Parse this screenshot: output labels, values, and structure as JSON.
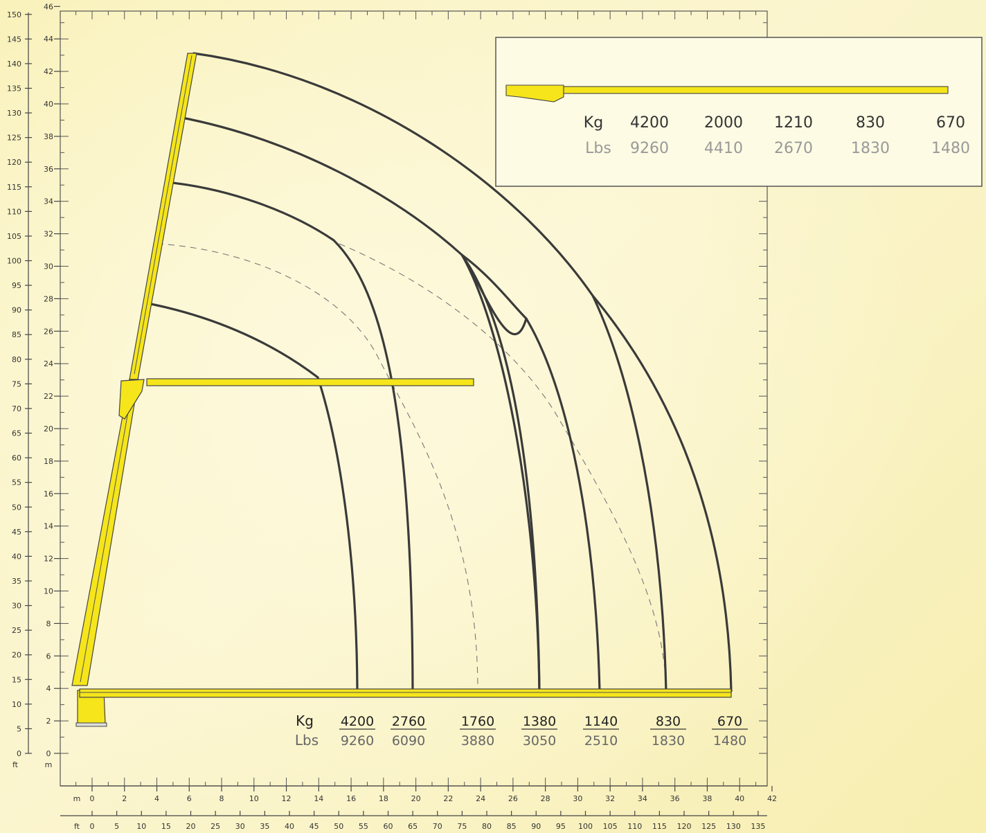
{
  "chart_data": {
    "type": "load-chart",
    "axes": {
      "left_ft": {
        "unit_label": "ft",
        "ticks": [
          0,
          5,
          10,
          15,
          20,
          25,
          30,
          35,
          40,
          45,
          50,
          55,
          60,
          65,
          70,
          75,
          80,
          85,
          90,
          95,
          100,
          105,
          110,
          115,
          120,
          125,
          130,
          135,
          140,
          145,
          150
        ]
      },
      "left_m": {
        "unit_label": "m",
        "ticks": [
          0,
          2,
          4,
          6,
          8,
          10,
          12,
          14,
          16,
          18,
          20,
          22,
          24,
          26,
          28,
          30,
          32,
          34,
          36,
          38,
          40,
          42,
          44,
          46
        ]
      },
      "bottom_m": {
        "unit_label": "m",
        "ticks": [
          0,
          2,
          4,
          6,
          8,
          10,
          12,
          14,
          16,
          18,
          20,
          22,
          24,
          26,
          28,
          30,
          32,
          34,
          36,
          38,
          40,
          42
        ]
      },
      "bottom_ft": {
        "unit_label": "ft",
        "ticks": [
          0,
          5,
          10,
          15,
          20,
          25,
          30,
          35,
          40,
          45,
          50,
          55,
          60,
          65,
          70,
          75,
          80,
          85,
          90,
          95,
          100,
          105,
          110,
          115,
          120,
          125,
          130,
          135
        ]
      }
    },
    "outreach_m": [
      16.6,
      20.0,
      27.9,
      31.7,
      35.8,
      39.7
    ],
    "apex_heights_m": [
      28.2,
      35.7,
      39.3,
      43.2
    ],
    "load_labels": {
      "unit_kg": "Kg",
      "unit_lbs": "Lbs",
      "kg": [
        "4200",
        "2760",
        "1760",
        "1380",
        "1140",
        "830",
        "670"
      ],
      "lbs": [
        "9260",
        "6090",
        "3880",
        "3050",
        "2510",
        "1830",
        "1480"
      ]
    },
    "inset": {
      "unit_kg": "Kg",
      "unit_lbs": "Lbs",
      "kg": [
        "4200",
        "2000",
        "1210",
        "830",
        "670"
      ],
      "lbs": [
        "9260",
        "4410",
        "2670",
        "1830",
        "1480"
      ]
    }
  }
}
